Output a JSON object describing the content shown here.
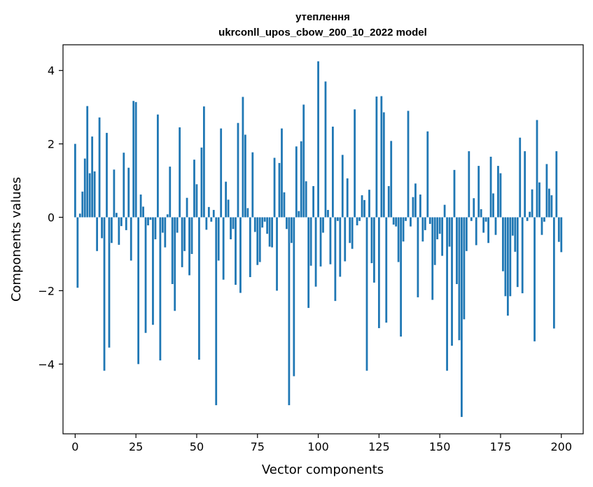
{
  "chart_data": {
    "type": "bar",
    "title": "утеплення",
    "subtitle": "ukrconll_upos_cbow_200_10_2022 model",
    "xlabel": "Vector components",
    "ylabel": "Components values",
    "xlim": [
      -5,
      209
    ],
    "ylim": [
      -5.9,
      4.7
    ],
    "xticks": [
      0,
      25,
      50,
      75,
      100,
      125,
      150,
      175,
      200
    ],
    "yticks": [
      4,
      2,
      0,
      -2,
      -4
    ],
    "ytick_labels": [
      "4",
      "2",
      "0",
      "−2",
      "−4"
    ],
    "bar_color": "#1f77b4",
    "grid": false,
    "values": [
      2.0,
      -1.92,
      0.1,
      0.7,
      1.6,
      3.03,
      1.2,
      2.2,
      1.25,
      -0.92,
      2.72,
      -0.57,
      -4.18,
      2.3,
      -3.55,
      -0.7,
      1.3,
      0.12,
      -0.75,
      -0.24,
      1.76,
      -0.35,
      1.35,
      -1.18,
      3.17,
      3.14,
      -4.0,
      0.62,
      0.29,
      -3.15,
      -0.22,
      -0.07,
      -2.93,
      -0.6,
      2.8,
      -3.9,
      -0.42,
      -0.82,
      0.08,
      1.38,
      -1.82,
      -2.55,
      -0.42,
      2.45,
      -1.36,
      -0.92,
      0.53,
      -1.58,
      -1.0,
      1.57,
      0.9,
      -3.88,
      1.9,
      3.02,
      -0.34,
      0.28,
      -0.12,
      0.2,
      -5.12,
      -1.18,
      2.42,
      -1.7,
      0.97,
      0.48,
      -0.6,
      -0.32,
      -1.84,
      2.57,
      -2.06,
      3.28,
      2.25,
      0.25,
      -1.63,
      1.77,
      -0.4,
      -1.3,
      -1.22,
      -0.28,
      -0.12,
      -0.45,
      -0.8,
      -0.82,
      1.62,
      -2.0,
      1.48,
      2.42,
      0.68,
      -0.32,
      -5.12,
      -0.7,
      -4.33,
      1.93,
      0.17,
      2.07,
      3.07,
      0.98,
      -2.47,
      -1.32,
      0.85,
      -1.89,
      4.25,
      -1.34,
      -0.42,
      3.7,
      0.2,
      -1.28,
      2.47,
      -2.28,
      -0.1,
      -1.62,
      1.7,
      -1.2,
      1.06,
      -0.7,
      -0.86,
      2.94,
      -0.22,
      -0.1,
      0.6,
      0.47,
      -4.18,
      0.75,
      -1.25,
      -1.78,
      3.29,
      -3.02,
      3.3,
      2.86,
      -2.87,
      0.85,
      2.08,
      -0.2,
      -0.25,
      -1.22,
      -3.25,
      -0.66,
      -0.1,
      2.9,
      -0.25,
      0.55,
      0.92,
      -2.18,
      0.62,
      -0.66,
      -0.35,
      2.34,
      -0.18,
      -2.25,
      -1.3,
      -0.6,
      -0.45,
      -1.05,
      0.34,
      -4.18,
      -0.8,
      -3.5,
      1.29,
      -1.82,
      -3.35,
      -5.44,
      -2.78,
      -0.92,
      1.8,
      -0.1,
      0.52,
      -0.76,
      1.4,
      0.22,
      -0.42,
      -0.12,
      -0.7,
      1.65,
      0.65,
      -0.48,
      1.4,
      1.2,
      -1.47,
      -2.15,
      -2.68,
      -2.15,
      -0.5,
      -0.94,
      -1.9,
      2.17,
      -2.07,
      1.8,
      -0.1,
      0.15,
      0.76,
      -3.38,
      2.65,
      0.95,
      -0.48,
      -0.12,
      1.45,
      0.78,
      0.6,
      -3.03,
      1.8,
      -0.67,
      -0.95
    ]
  }
}
